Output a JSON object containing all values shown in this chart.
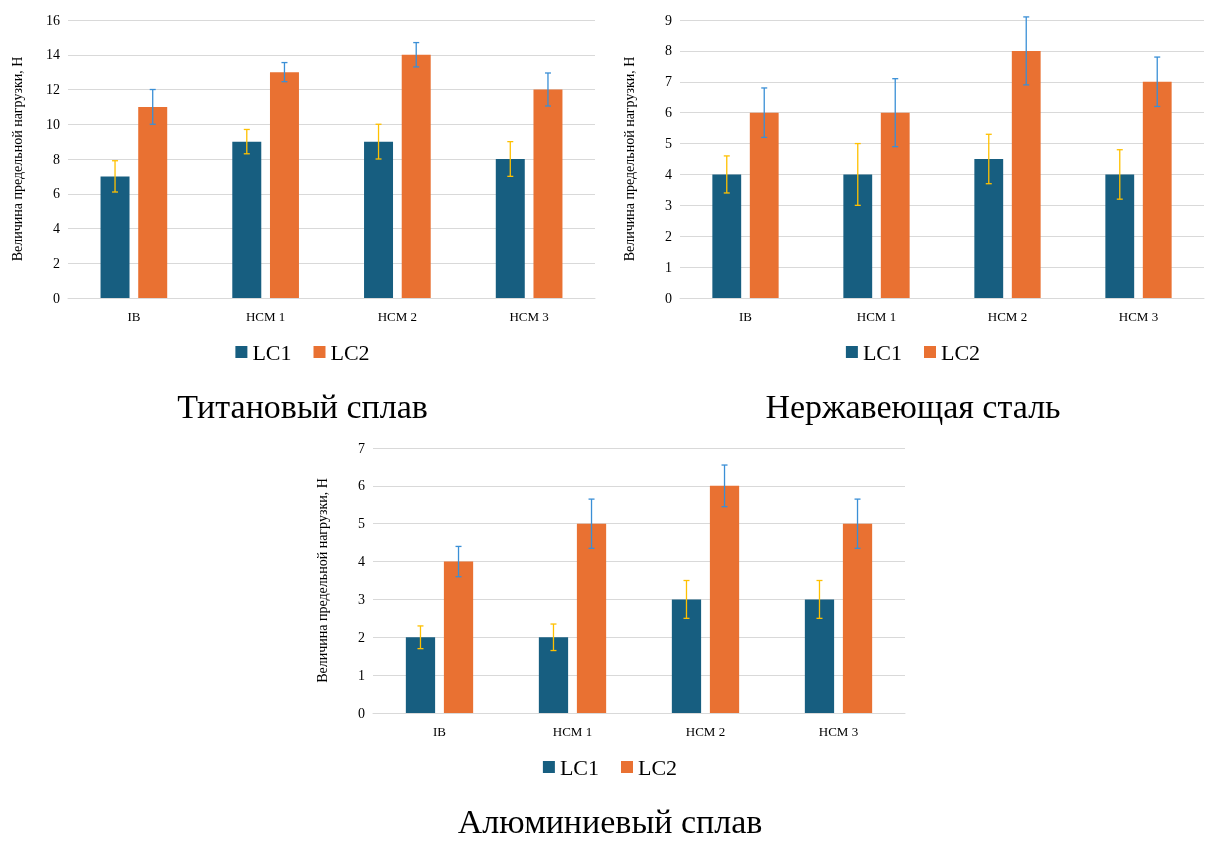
{
  "chart_data": [
    {
      "type": "bar",
      "title": "Титановый сплав",
      "ylabel": "Величина предельной нагрузки, Н",
      "categories": [
        "IB",
        "HCM 1",
        "HCM 2",
        "HCM 3"
      ],
      "ylim": [
        0,
        16
      ],
      "yticks": [
        0,
        2,
        4,
        6,
        8,
        10,
        12,
        14,
        16
      ],
      "grid": "y",
      "legend": "bottom",
      "series": [
        {
          "name": "LC1",
          "color": "#175e80",
          "values": [
            7,
            9,
            9,
            8
          ],
          "errors": [
            0.9,
            0.7,
            1.0,
            1.0
          ]
        },
        {
          "name": "LC2",
          "color": "#e97132",
          "values": [
            11,
            13,
            14,
            12
          ],
          "errors": [
            1.0,
            0.55,
            0.7,
            0.95
          ]
        }
      ]
    },
    {
      "type": "bar",
      "title": "Нержавеющая сталь",
      "ylabel": "Величина предельной нагрузки, Н",
      "categories": [
        "IB",
        "HCM 1",
        "HCM 2",
        "HCM 3"
      ],
      "ylim": [
        0,
        9
      ],
      "yticks": [
        0,
        1,
        2,
        3,
        4,
        5,
        6,
        7,
        8,
        9
      ],
      "grid": "y",
      "legend": "bottom",
      "series": [
        {
          "name": "LC1",
          "color": "#175e80",
          "values": [
            4,
            4,
            4.5,
            4
          ],
          "errors": [
            0.6,
            1.0,
            0.8,
            0.8
          ]
        },
        {
          "name": "LC2",
          "color": "#e97132",
          "values": [
            6,
            6,
            8,
            7
          ],
          "errors": [
            0.8,
            1.1,
            1.1,
            0.8
          ]
        }
      ]
    },
    {
      "type": "bar",
      "title": "Алюминиевый сплав",
      "ylabel": "Величина предельной нагрузки, Н",
      "categories": [
        "IB",
        "HCM 1",
        "HCM 2",
        "HCM 3"
      ],
      "ylim": [
        0,
        7
      ],
      "yticks": [
        0,
        1,
        2,
        3,
        4,
        5,
        6,
        7
      ],
      "grid": "y",
      "legend": "bottom",
      "series": [
        {
          "name": "LC1",
          "color": "#175e80",
          "values": [
            2,
            2,
            3,
            3
          ],
          "errors": [
            0.3,
            0.35,
            0.5,
            0.5
          ]
        },
        {
          "name": "LC2",
          "color": "#e97132",
          "values": [
            4,
            5,
            6,
            5
          ],
          "errors": [
            0.4,
            0.65,
            0.55,
            0.65
          ]
        }
      ]
    }
  ]
}
